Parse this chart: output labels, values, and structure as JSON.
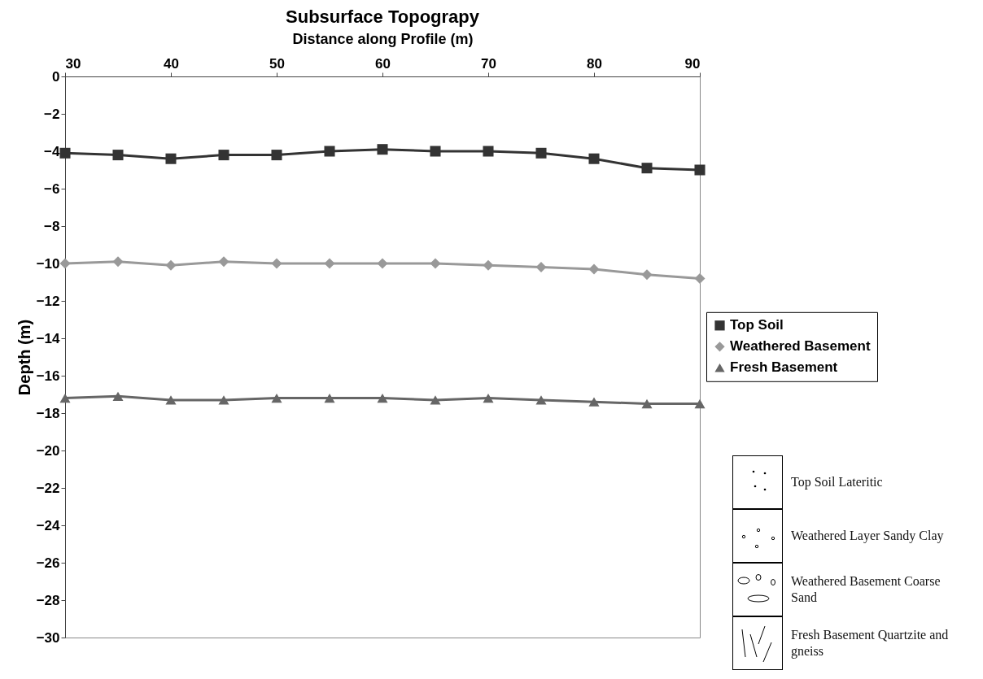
{
  "chart_data": {
    "type": "line",
    "title": "Subsurface Topograpy",
    "xlabel": "Distance along Profile (m)",
    "ylabel": "Depth (m)",
    "x": [
      30,
      35,
      40,
      45,
      50,
      55,
      60,
      65,
      70,
      75,
      80,
      85,
      90
    ],
    "series": [
      {
        "name": "Top Soil",
        "color": "#333333",
        "marker": "square",
        "values": [
          -4.1,
          -4.2,
          -4.4,
          -4.2,
          -4.2,
          -4.0,
          -3.9,
          -4.0,
          -4.0,
          -4.1,
          -4.4,
          -4.9,
          -5.0
        ]
      },
      {
        "name": "Weathered Basement",
        "color": "#999999",
        "marker": "diamond",
        "values": [
          -10.0,
          -9.9,
          -10.1,
          -9.9,
          -10.0,
          -10.0,
          -10.0,
          -10.0,
          -10.1,
          -10.2,
          -10.3,
          -10.6,
          -10.8
        ]
      },
      {
        "name": "Fresh Basement",
        "color": "#666666",
        "marker": "triangle",
        "values": [
          -17.2,
          -17.1,
          -17.3,
          -17.3,
          -17.2,
          -17.2,
          -17.2,
          -17.3,
          -17.2,
          -17.3,
          -17.4,
          -17.5,
          -17.5
        ]
      }
    ],
    "xlim": [
      30,
      90
    ],
    "xticks": [
      30,
      40,
      50,
      60,
      70,
      80,
      90
    ],
    "ylim": [
      -30,
      0
    ],
    "yticks": [
      0,
      -2,
      -4,
      -6,
      -8,
      -10,
      -12,
      -14,
      -16,
      -18,
      -20,
      -22,
      -24,
      -26,
      -28,
      -30
    ],
    "grid": false,
    "legend": "right",
    "line_style": "solid",
    "annotations": [
      "Top Soil Lateritic",
      "Weathered Layer Sandy Clay",
      "Weathered Basement Coarse Sand",
      "Fresh Basement Quartzite and gneiss"
    ]
  }
}
